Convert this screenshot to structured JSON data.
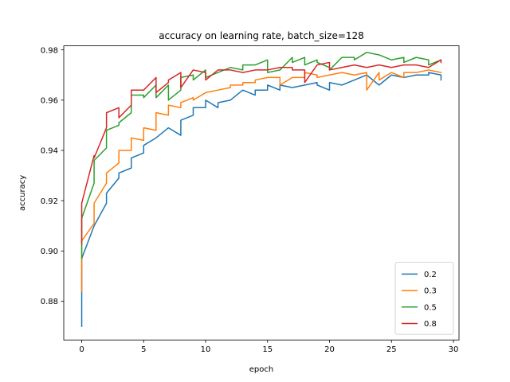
{
  "chart_data": {
    "type": "line",
    "title": "accuracy on learning rate, batch_size=128",
    "xlabel": "epoch",
    "ylabel": "accuracy",
    "xlim": [
      -1.45,
      30.45
    ],
    "ylim": [
      0.8646,
      0.9816
    ],
    "xticks": [
      0,
      5,
      10,
      15,
      20,
      25,
      30
    ],
    "yticks": [
      0.88,
      0.9,
      0.92,
      0.94,
      0.96,
      0.98
    ],
    "ytick_labels": [
      "0.88",
      "0.90",
      "0.92",
      "0.94",
      "0.96",
      "0.98"
    ],
    "grid": false,
    "legend_position": "lower-right",
    "series": [
      {
        "name": "0.2",
        "color": "#1f77b4",
        "points": [
          [
            0,
            0.87
          ],
          [
            0,
            0.884
          ],
          [
            0,
            0.897
          ],
          [
            1,
            0.91
          ],
          [
            1,
            0.91
          ],
          [
            2,
            0.919
          ],
          [
            2,
            0.923
          ],
          [
            3,
            0.929
          ],
          [
            3,
            0.931
          ],
          [
            4,
            0.933
          ],
          [
            4,
            0.937
          ],
          [
            5,
            0.939
          ],
          [
            5,
            0.942
          ],
          [
            6,
            0.945
          ],
          [
            7,
            0.949
          ],
          [
            8,
            0.946
          ],
          [
            8,
            0.952
          ],
          [
            9,
            0.954
          ],
          [
            9,
            0.957
          ],
          [
            10,
            0.957
          ],
          [
            10,
            0.96
          ],
          [
            11,
            0.957
          ],
          [
            11,
            0.959
          ],
          [
            12,
            0.96
          ],
          [
            13,
            0.964
          ],
          [
            14,
            0.962
          ],
          [
            14,
            0.964
          ],
          [
            15,
            0.964
          ],
          [
            15,
            0.966
          ],
          [
            16,
            0.964
          ],
          [
            16,
            0.966
          ],
          [
            17,
            0.965
          ],
          [
            18,
            0.966
          ],
          [
            19,
            0.967
          ],
          [
            19,
            0.966
          ],
          [
            20,
            0.964
          ],
          [
            20,
            0.967
          ],
          [
            21,
            0.966
          ],
          [
            22,
            0.968
          ],
          [
            23,
            0.97
          ],
          [
            24,
            0.966
          ],
          [
            25,
            0.97
          ],
          [
            26,
            0.969
          ],
          [
            27,
            0.97
          ],
          [
            28,
            0.97
          ],
          [
            28,
            0.971
          ],
          [
            29,
            0.97
          ],
          [
            29,
            0.968
          ]
        ]
      },
      {
        "name": "0.3",
        "color": "#ff7f0e",
        "points": [
          [
            0,
            0.884
          ],
          [
            0,
            0.904
          ],
          [
            1,
            0.911
          ],
          [
            1,
            0.919
          ],
          [
            2,
            0.927
          ],
          [
            2,
            0.931
          ],
          [
            3,
            0.935
          ],
          [
            3,
            0.94
          ],
          [
            4,
            0.94
          ],
          [
            4,
            0.945
          ],
          [
            5,
            0.944
          ],
          [
            5,
            0.949
          ],
          [
            6,
            0.948
          ],
          [
            6,
            0.955
          ],
          [
            7,
            0.954
          ],
          [
            7,
            0.958
          ],
          [
            8,
            0.957
          ],
          [
            8,
            0.959
          ],
          [
            9,
            0.961
          ],
          [
            9,
            0.96
          ],
          [
            10,
            0.963
          ],
          [
            11,
            0.964
          ],
          [
            12,
            0.965
          ],
          [
            12,
            0.966
          ],
          [
            13,
            0.966
          ],
          [
            13,
            0.967
          ],
          [
            14,
            0.967
          ],
          [
            14,
            0.968
          ],
          [
            15,
            0.969
          ],
          [
            16,
            0.969
          ],
          [
            16,
            0.966
          ],
          [
            17,
            0.969
          ],
          [
            18,
            0.969
          ],
          [
            18,
            0.971
          ],
          [
            19,
            0.97
          ],
          [
            19,
            0.969
          ],
          [
            20,
            0.97
          ],
          [
            21,
            0.971
          ],
          [
            22,
            0.97
          ],
          [
            23,
            0.971
          ],
          [
            23,
            0.964
          ],
          [
            24,
            0.971
          ],
          [
            24,
            0.968
          ],
          [
            25,
            0.971
          ],
          [
            26,
            0.969
          ],
          [
            26,
            0.971
          ],
          [
            27,
            0.971
          ],
          [
            28,
            0.972
          ],
          [
            29,
            0.971
          ]
        ]
      },
      {
        "name": "0.5",
        "color": "#2ca02c",
        "points": [
          [
            0,
            0.897
          ],
          [
            0,
            0.913
          ],
          [
            1,
            0.927
          ],
          [
            1,
            0.936
          ],
          [
            2,
            0.941
          ],
          [
            2,
            0.948
          ],
          [
            3,
            0.95
          ],
          [
            3,
            0.951
          ],
          [
            4,
            0.955
          ],
          [
            4,
            0.962
          ],
          [
            5,
            0.962
          ],
          [
            5,
            0.961
          ],
          [
            6,
            0.966
          ],
          [
            6,
            0.961
          ],
          [
            7,
            0.966
          ],
          [
            7,
            0.96
          ],
          [
            8,
            0.964
          ],
          [
            8,
            0.969
          ],
          [
            9,
            0.97
          ],
          [
            9,
            0.968
          ],
          [
            10,
            0.972
          ],
          [
            10,
            0.969
          ],
          [
            11,
            0.971
          ],
          [
            12,
            0.973
          ],
          [
            13,
            0.972
          ],
          [
            13,
            0.974
          ],
          [
            14,
            0.974
          ],
          [
            15,
            0.976
          ],
          [
            15,
            0.971
          ],
          [
            16,
            0.972
          ],
          [
            17,
            0.977
          ],
          [
            17,
            0.975
          ],
          [
            18,
            0.977
          ],
          [
            18,
            0.974
          ],
          [
            19,
            0.976
          ],
          [
            19,
            0.975
          ],
          [
            20,
            0.973
          ],
          [
            20,
            0.972
          ],
          [
            21,
            0.977
          ],
          [
            22,
            0.977
          ],
          [
            22,
            0.976
          ],
          [
            23,
            0.979
          ],
          [
            24,
            0.978
          ],
          [
            25,
            0.976
          ],
          [
            26,
            0.977
          ],
          [
            26,
            0.975
          ],
          [
            27,
            0.977
          ],
          [
            28,
            0.976
          ],
          [
            28,
            0.974
          ],
          [
            29,
            0.976
          ]
        ]
      },
      {
        "name": "0.8",
        "color": "#d62728",
        "points": [
          [
            0,
            0.903
          ],
          [
            0,
            0.919
          ],
          [
            1,
            0.938
          ],
          [
            1,
            0.937
          ],
          [
            2,
            0.949
          ],
          [
            2,
            0.955
          ],
          [
            3,
            0.957
          ],
          [
            3,
            0.953
          ],
          [
            4,
            0.958
          ],
          [
            4,
            0.964
          ],
          [
            5,
            0.964
          ],
          [
            6,
            0.969
          ],
          [
            6,
            0.963
          ],
          [
            7,
            0.967
          ],
          [
            7,
            0.968
          ],
          [
            8,
            0.971
          ],
          [
            8,
            0.965
          ],
          [
            9,
            0.972
          ],
          [
            10,
            0.971
          ],
          [
            10,
            0.968
          ],
          [
            11,
            0.972
          ],
          [
            12,
            0.972
          ],
          [
            13,
            0.971
          ],
          [
            14,
            0.972
          ],
          [
            15,
            0.972
          ],
          [
            16,
            0.973
          ],
          [
            17,
            0.973
          ],
          [
            17,
            0.972
          ],
          [
            18,
            0.972
          ],
          [
            18,
            0.967
          ],
          [
            19,
            0.974
          ],
          [
            20,
            0.975
          ],
          [
            20,
            0.972
          ],
          [
            21,
            0.973
          ],
          [
            22,
            0.974
          ],
          [
            23,
            0.973
          ],
          [
            24,
            0.974
          ],
          [
            25,
            0.973
          ],
          [
            26,
            0.974
          ],
          [
            27,
            0.974
          ],
          [
            28,
            0.973
          ],
          [
            29,
            0.976
          ],
          [
            29,
            0.975
          ]
        ]
      }
    ]
  }
}
